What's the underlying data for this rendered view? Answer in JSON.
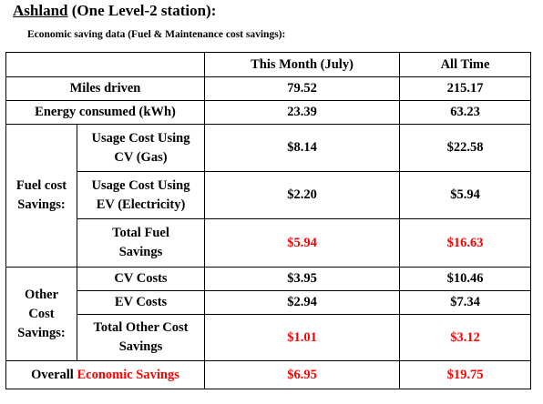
{
  "title": {
    "location": "Ashland",
    "rest": " (One Level-2 station):"
  },
  "subtitle": "Economic saving data (Fuel & Maintenance cost savings):",
  "table": {
    "headers": {
      "blank": "",
      "month": "This Month (July)",
      "all": "All Time"
    },
    "miles": {
      "label": "Miles driven",
      "month": "79.52",
      "all": "215.17"
    },
    "energy": {
      "label": "Energy consumed (kWh)",
      "month": "23.39",
      "all": "63.23"
    },
    "fuel_group": {
      "label_line1": "Fuel cost",
      "label_line2": "Savings:"
    },
    "usage_cv": {
      "label_line1": "Usage Cost Using",
      "label_line2": "CV (Gas)",
      "month": "$8.14",
      "all": "$22.58"
    },
    "usage_ev": {
      "label_line1": "Usage Cost Using",
      "label_line2": "EV (Electricity)",
      "month": "$2.20",
      "all": "$5.94"
    },
    "total_fuel": {
      "label_line1": "Total Fuel",
      "label_line2": "Savings",
      "month": "$5.94",
      "all": "$16.63"
    },
    "other_group": {
      "label_line1": "Other",
      "label_line2": "Cost",
      "label_line3": "Savings:"
    },
    "cv_costs": {
      "label": "CV Costs",
      "month": "$3.95",
      "all": "$10.46"
    },
    "ev_costs": {
      "label": "EV Costs",
      "month": "$2.94",
      "all": "$7.34"
    },
    "total_other": {
      "label_line1": "Total Other Cost",
      "label_line2": "Savings",
      "month": "$1.01",
      "all": "$3.12"
    },
    "overall": {
      "label_prefix": "Overall ",
      "label_highlight": "Economic Savings",
      "month": "$6.95",
      "all": "$19.75"
    }
  },
  "colors": {
    "highlight": "#ff0000",
    "text": "#000000",
    "border": "#000000"
  }
}
